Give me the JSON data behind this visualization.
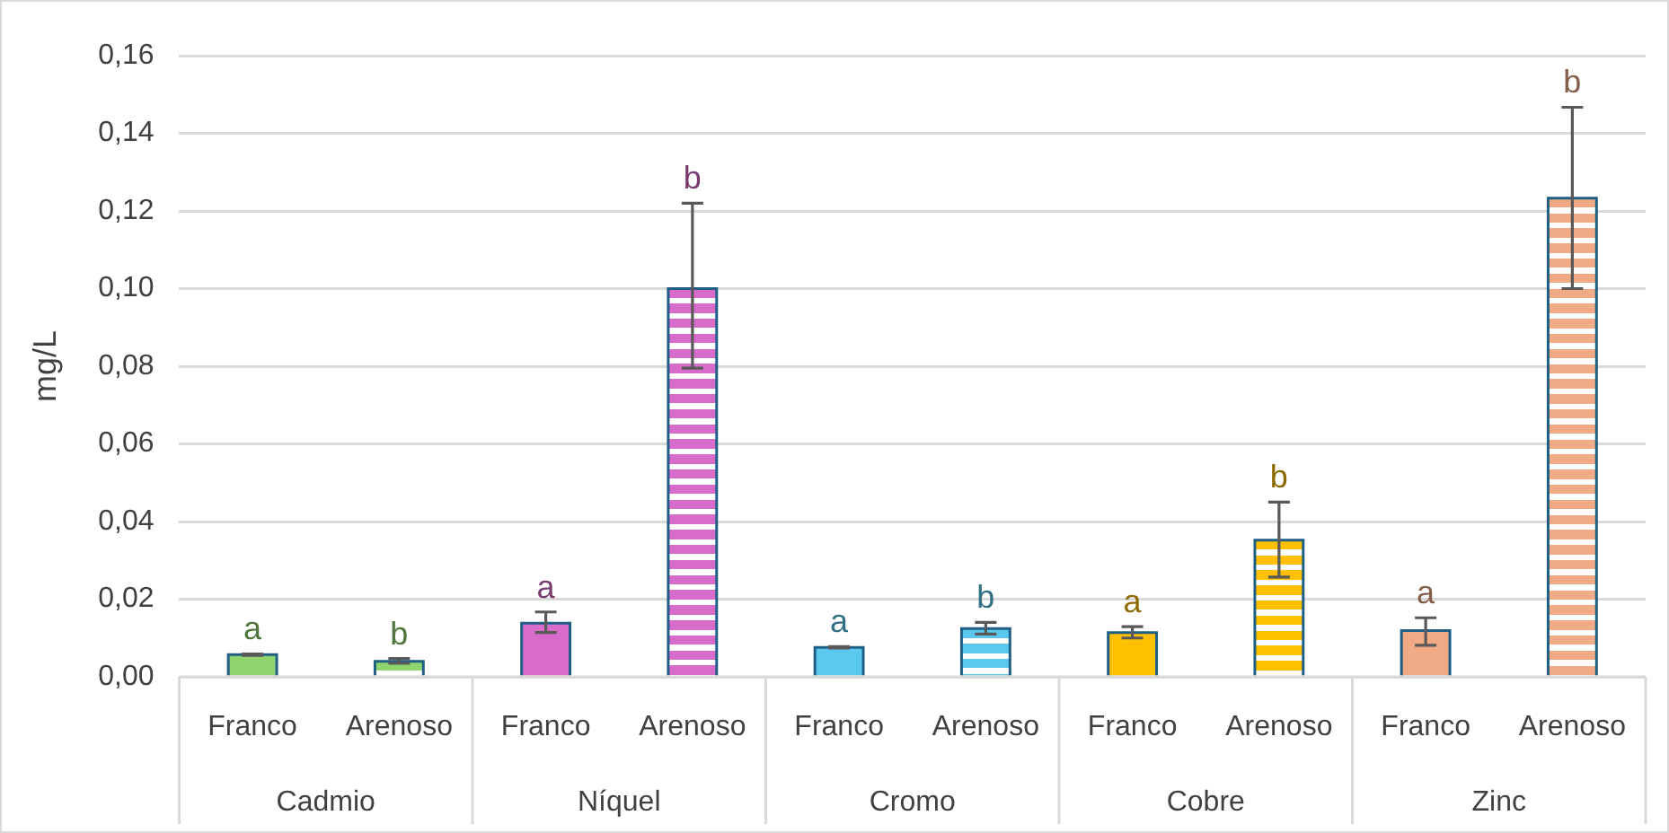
{
  "chart_data": {
    "type": "bar",
    "ylabel": "mg/L",
    "categories": [
      "Franco",
      "Arenoso",
      "Franco",
      "Arenoso",
      "Franco",
      "Arenoso",
      "Franco",
      "Arenoso",
      "Franco",
      "Arenoso"
    ],
    "annotations": [
      "Cadmio",
      "Níquel",
      "Cromo",
      "Cobre",
      "Zinc"
    ],
    "values": [
      0.0057,
      0.004,
      0.0138,
      0.1,
      0.0076,
      0.0124,
      0.0114,
      0.0352,
      0.0119,
      0.1233
    ],
    "errors": [
      [
        0.0055,
        0.0059
      ],
      [
        0.0035,
        0.0047
      ],
      [
        0.0114,
        0.0167
      ],
      [
        0.0795,
        0.122
      ],
      [
        0.0074,
        0.0078
      ],
      [
        0.011,
        0.014
      ],
      [
        0.01,
        0.0129
      ],
      [
        0.0257,
        0.045
      ],
      [
        0.0081,
        0.0152
      ],
      [
        0.1,
        0.1467
      ]
    ],
    "colors": [
      "#8fd46e",
      "#8fd46e",
      "#d86ccb",
      "#d86ccb",
      "#5bc8f0",
      "#5bc8f0",
      "#ffc000",
      "#ffc000",
      "#f0aa86",
      "#f0aa86"
    ],
    "value_labels": [
      "a",
      "b",
      "a",
      "b",
      "a",
      "b",
      "a",
      "b",
      "a",
      "b"
    ],
    "ylim": [
      0,
      0.16
    ],
    "yticks": [
      {
        "value": 0,
        "label": "0,00"
      },
      {
        "value": 0.02,
        "label": "0,02"
      },
      {
        "value": 0.04,
        "label": "0,04"
      },
      {
        "value": 0.06,
        "label": "0,06"
      },
      {
        "value": 0.08,
        "label": "0,08"
      },
      {
        "value": 0.1,
        "label": "0,10"
      },
      {
        "value": 0.12,
        "label": "0,12"
      },
      {
        "value": 0.14,
        "label": "0,14"
      },
      {
        "value": 0.16,
        "label": "0,16"
      }
    ],
    "grid": "y",
    "legend": false
  }
}
